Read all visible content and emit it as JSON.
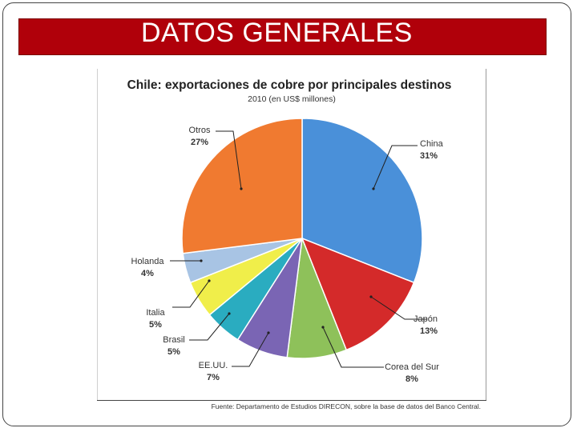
{
  "slide": {
    "title": "DATOS GENERALES"
  },
  "colors": {
    "title_bar": "#b0000a",
    "China": "#4a90d9",
    "Japón": "#d42a2a",
    "Corea del Sur": "#8ec15a",
    "EE.UU.": "#7a65b4",
    "Brasil": "#2aacc0",
    "Italia": "#f0ee4a",
    "Holanda": "#a8c4e4",
    "Otros": "#f07a30"
  },
  "chart_data": {
    "type": "pie",
    "title": "Chile: exportaciones de cobre por principales destinos",
    "subtitle": "2010 (en US$ millones)",
    "categories": [
      "China",
      "Japón",
      "Corea del Sur",
      "EE.UU.",
      "Brasil",
      "Italia",
      "Holanda",
      "Otros"
    ],
    "values": [
      31,
      13,
      8,
      7,
      5,
      5,
      4,
      27
    ],
    "labels": [
      "31%",
      "13%",
      "8%",
      "7%",
      "5%",
      "5%",
      "4%",
      "27%"
    ],
    "start_angle_deg": 0,
    "direction": "clockwise",
    "legend": "none",
    "source": "Fuente: Departamento de Estudios DIRECON, sobre la base de datos del Banco Central."
  }
}
